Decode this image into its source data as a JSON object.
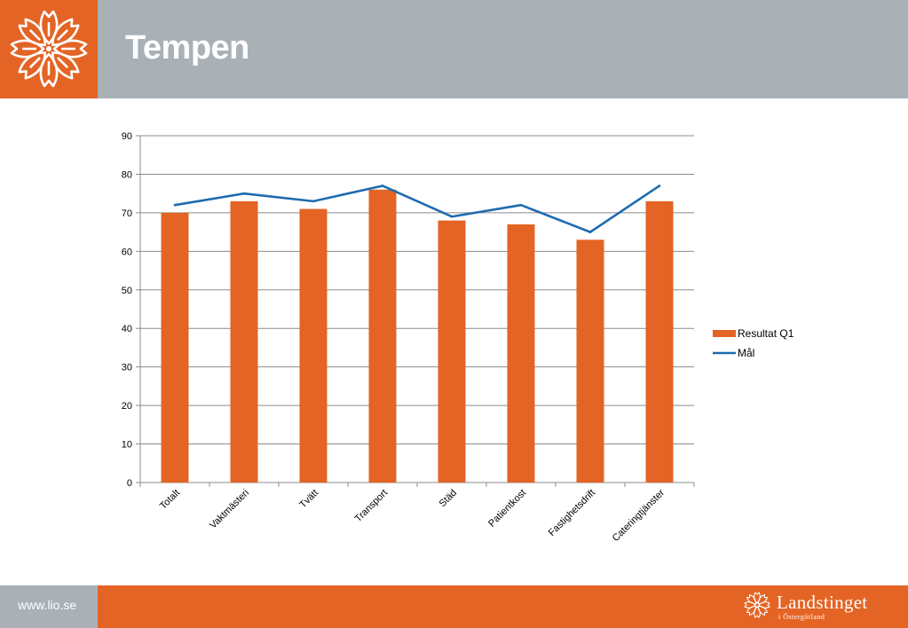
{
  "header": {
    "title": "Tempen"
  },
  "footer": {
    "url": "www.lio.se",
    "brand_name": "Landstinget",
    "brand_sub": "i Östergötland"
  },
  "colors": {
    "accent": "#e36424",
    "header_gray": "#a9b1b7",
    "line": "#1f6bb0"
  },
  "icons": {
    "logo": "flower-logo-icon",
    "brand": "flower-small-icon"
  },
  "chart_data": {
    "type": "bar",
    "categories": [
      "Totalt",
      "Vaktmästeri",
      "Tvätt",
      "Transport",
      "Städ",
      "Patientkost",
      "Fastighetsdrift",
      "Cateringtjänster"
    ],
    "series": [
      {
        "name": "Resultat Q1",
        "type": "bar",
        "values": [
          70,
          73,
          71,
          76,
          68,
          67,
          63,
          73
        ]
      },
      {
        "name": "Mål",
        "type": "line",
        "values": [
          72,
          75,
          73,
          77,
          69,
          72,
          65,
          77
        ]
      }
    ],
    "ylim": [
      0,
      90
    ],
    "yticks": [
      0,
      10,
      20,
      30,
      40,
      50,
      60,
      70,
      80,
      90
    ],
    "grid": true,
    "legend": "right"
  }
}
